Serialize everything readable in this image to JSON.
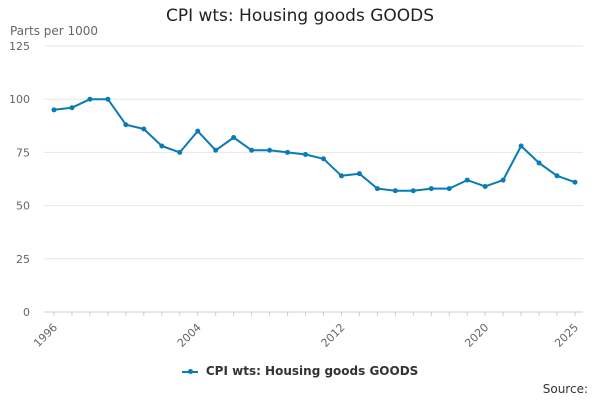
{
  "chart_data": {
    "type": "line",
    "title": "CPI wts: Housing goods GOODS",
    "ylabel": "Parts per 1000",
    "xlabel": "",
    "ylim": [
      0,
      125
    ],
    "yticks": [
      0,
      25,
      50,
      75,
      100,
      125
    ],
    "x_range": [
      1996,
      2025
    ],
    "xtick_labels": [
      "1996",
      "2004",
      "2012",
      "2020",
      "2025"
    ],
    "grid": true,
    "legend_position": "bottom",
    "series": [
      {
        "name": "CPI wts: Housing goods GOODS",
        "color": "#0a7bb5",
        "x": [
          1996,
          1997,
          1998,
          1999,
          2000,
          2001,
          2002,
          2003,
          2004,
          2005,
          2006,
          2007,
          2008,
          2009,
          2010,
          2011,
          2012,
          2013,
          2014,
          2015,
          2016,
          2017,
          2018,
          2019,
          2020,
          2021,
          2022,
          2023,
          2024,
          2025
        ],
        "values": [
          95,
          96,
          100,
          100,
          88,
          86,
          78,
          75,
          85,
          76,
          82,
          76,
          76,
          75,
          74,
          72,
          64,
          65,
          58,
          57,
          57,
          58,
          58,
          62,
          59,
          62,
          78,
          70,
          64,
          61
        ]
      }
    ]
  },
  "source_label": "Source:"
}
